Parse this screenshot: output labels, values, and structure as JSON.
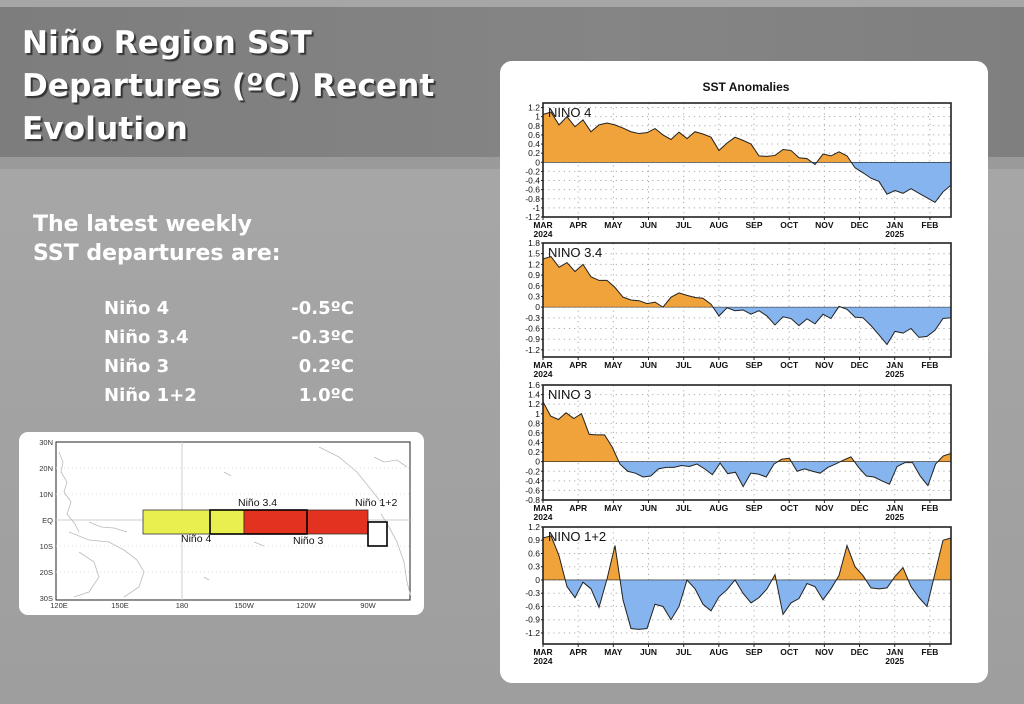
{
  "slide": {
    "title": "Niño Region SST\nDepartures (ºC) Recent\nEvolution",
    "intro": "The latest weekly\nSST departures are:",
    "departures": [
      {
        "region": "Niño 4",
        "value": "-0.5ºC"
      },
      {
        "region": "Niño 3.4",
        "value": "-0.3ºC"
      },
      {
        "region": "Niño 3",
        "value": "0.2ºC"
      },
      {
        "region": "Niño 1+2",
        "value": "1.0ºC"
      }
    ]
  },
  "map": {
    "lat_labels": [
      "30N",
      "20N",
      "10N",
      "EQ",
      "10S",
      "20S",
      "30S"
    ],
    "lon_labels": [
      "120E",
      "150E",
      "180",
      "150W",
      "120W",
      "90W"
    ],
    "regions": [
      {
        "name": "Niño 4",
        "label": "Niño 4",
        "color": "#e8ef4f"
      },
      {
        "name": "Niño 3.4",
        "label": "Niño 3.4",
        "color": ""
      },
      {
        "name": "Niño 3",
        "label": "Niño 3",
        "color": "#e3321f"
      },
      {
        "name": "Niño 1+2",
        "label": "Niño 1+2",
        "color": "#ffffff"
      }
    ]
  },
  "chart_data": {
    "type": "area",
    "title": "SST Anomalies",
    "positive_color": "#f0a33a",
    "negative_color": "#85b4ee",
    "x_tick_labels": [
      "MAR",
      "APR",
      "MAY",
      "JUN",
      "JUL",
      "AUG",
      "SEP",
      "OCT",
      "NOV",
      "DEC",
      "JAN",
      "FEB"
    ],
    "x_year_labels": {
      "MAR": "2024",
      "JAN": "2025"
    },
    "x_unit": "week index (0 = early Mar 2024)",
    "grid": true,
    "panels": [
      {
        "name": "NINO 4",
        "ylim": [
          -1.2,
          1.3
        ],
        "yticks": [
          "1.2",
          "1",
          "0.8",
          "0.6",
          "0.4",
          "0.2",
          "0",
          "-0.2",
          "-0.4",
          "-0.6",
          "-0.8",
          "-1",
          "-1.2"
        ],
        "ytick_values": [
          1.2,
          1,
          0.8,
          0.6,
          0.4,
          0.2,
          0,
          -0.2,
          -0.4,
          -0.6,
          -0.8,
          -1,
          -1.2
        ],
        "values": [
          1.05,
          1.1,
          0.82,
          1.0,
          0.78,
          0.93,
          0.67,
          0.82,
          0.86,
          0.82,
          0.75,
          0.67,
          0.63,
          0.65,
          0.74,
          0.6,
          0.5,
          0.66,
          0.52,
          0.67,
          0.62,
          0.55,
          0.26,
          0.42,
          0.55,
          0.48,
          0.4,
          0.14,
          0.13,
          0.15,
          0.28,
          0.26,
          0.1,
          0.08,
          -0.05,
          0.18,
          0.14,
          0.23,
          0.14,
          -0.12,
          -0.23,
          -0.35,
          -0.42,
          -0.7,
          -0.62,
          -0.68,
          -0.58,
          -0.68,
          -0.78,
          -0.88,
          -0.65,
          -0.5
        ]
      },
      {
        "name": "NINO 3.4",
        "ylim": [
          -1.4,
          1.8
        ],
        "yticks": [
          "1.8",
          "1.5",
          "1.2",
          "0.9",
          "0.6",
          "0.3",
          "0",
          "-0.3",
          "-0.6",
          "-0.9",
          "-1.2"
        ],
        "ytick_values": [
          1.8,
          1.5,
          1.2,
          0.9,
          0.6,
          0.3,
          0,
          -0.3,
          -0.6,
          -0.9,
          -1.2
        ],
        "values": [
          1.35,
          1.42,
          1.12,
          1.25,
          1.0,
          1.2,
          0.85,
          0.75,
          0.75,
          0.55,
          0.28,
          0.2,
          0.18,
          0.1,
          0.14,
          0.0,
          0.28,
          0.4,
          0.33,
          0.27,
          0.25,
          0.08,
          -0.25,
          -0.02,
          -0.1,
          -0.08,
          -0.2,
          -0.1,
          -0.25,
          -0.5,
          -0.27,
          -0.32,
          -0.52,
          -0.33,
          -0.47,
          -0.2,
          -0.32,
          0.02,
          -0.06,
          -0.28,
          -0.3,
          -0.52,
          -0.78,
          -1.05,
          -0.68,
          -0.73,
          -0.6,
          -0.85,
          -0.82,
          -0.65,
          -0.32,
          -0.3
        ]
      },
      {
        "name": "NINO 3",
        "ylim": [
          -0.8,
          1.6
        ],
        "yticks": [
          "1.6",
          "1.4",
          "1.2",
          "1",
          "0.8",
          "0.6",
          "0.4",
          "0.2",
          "0",
          "-0.2",
          "-0.4",
          "-0.6",
          "-0.8"
        ],
        "ytick_values": [
          1.6,
          1.4,
          1.2,
          1,
          0.8,
          0.6,
          0.4,
          0.2,
          0,
          -0.2,
          -0.4,
          -0.6,
          -0.8
        ],
        "values": [
          1.25,
          0.95,
          0.88,
          1.02,
          0.9,
          1.0,
          0.57,
          0.56,
          0.56,
          0.3,
          -0.05,
          -0.2,
          -0.24,
          -0.32,
          -0.3,
          -0.15,
          -0.12,
          -0.12,
          -0.08,
          -0.1,
          -0.05,
          -0.15,
          -0.27,
          -0.03,
          -0.25,
          -0.22,
          -0.52,
          -0.24,
          -0.26,
          -0.32,
          -0.05,
          0.05,
          0.07,
          -0.2,
          -0.15,
          -0.2,
          -0.24,
          -0.12,
          -0.05,
          0.03,
          0.1,
          -0.12,
          -0.3,
          -0.32,
          -0.4,
          -0.47,
          -0.1,
          -0.02,
          -0.02,
          -0.3,
          -0.5,
          -0.05,
          0.12,
          0.17
        ]
      },
      {
        "name": "NINO 1+2",
        "ylim": [
          -1.45,
          1.2
        ],
        "yticks": [
          "1.2",
          "0.9",
          "0.6",
          "0.3",
          "0",
          "-0.3",
          "-0.6",
          "-0.9",
          "-1.2"
        ],
        "ytick_values": [
          1.2,
          0.9,
          0.6,
          0.3,
          0,
          -0.3,
          -0.6,
          -0.9,
          -1.2
        ],
        "values": [
          0.95,
          1.0,
          0.55,
          -0.15,
          -0.4,
          -0.05,
          -0.2,
          -0.62,
          0.02,
          0.78,
          -0.45,
          -1.1,
          -1.12,
          -1.1,
          -0.55,
          -0.6,
          -0.9,
          -0.6,
          0.0,
          -0.2,
          -0.55,
          -0.7,
          -0.38,
          -0.22,
          0.0,
          -0.3,
          -0.52,
          -0.4,
          -0.2,
          0.12,
          -0.78,
          -0.52,
          -0.42,
          -0.08,
          -0.15,
          -0.45,
          -0.2,
          0.1,
          0.78,
          0.3,
          0.1,
          -0.18,
          -0.2,
          -0.18,
          0.08,
          0.28,
          -0.15,
          -0.4,
          -0.6,
          0.15,
          0.9,
          0.95
        ]
      }
    ]
  }
}
